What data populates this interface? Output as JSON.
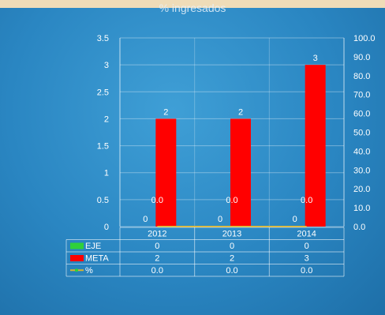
{
  "title": "% ingresados",
  "chart_data": {
    "type": "bar",
    "categories": [
      "2012",
      "2013",
      "2014"
    ],
    "series": [
      {
        "name": "EJE",
        "type": "bar",
        "color": "#2fd13a",
        "values": [
          0,
          0,
          0
        ]
      },
      {
        "name": "META",
        "type": "bar",
        "color": "#ff0000",
        "values": [
          2,
          2,
          3
        ]
      },
      {
        "name": "%",
        "type": "line",
        "axis": "right",
        "color": "#d7b42f",
        "values": [
          0.0,
          0.0,
          0.0
        ]
      }
    ],
    "ylim": [
      0,
      3.5
    ],
    "yticks": [
      "0",
      "0.5",
      "1",
      "1.5",
      "2",
      "2.5",
      "3",
      "3.5"
    ],
    "y2lim": [
      0,
      100
    ],
    "y2ticks": [
      "0.0",
      "10.0",
      "20.0",
      "30.0",
      "40.0",
      "50.0",
      "60.0",
      "70.0",
      "80.0",
      "90.0",
      "100.0"
    ],
    "data_labels": {
      "EJE": [
        "0",
        "0",
        "0"
      ],
      "META": [
        "2",
        "2",
        "3"
      ],
      "%": [
        "0.0",
        "0.0",
        "0.0"
      ]
    },
    "table": [
      {
        "series": "EJE",
        "values": [
          "0",
          "0",
          "0"
        ]
      },
      {
        "series": "META",
        "values": [
          "2",
          "2",
          "3"
        ]
      },
      {
        "series": "%",
        "values": [
          "0.0",
          "0.0",
          "0.0"
        ]
      }
    ],
    "grid": true,
    "legend": "data-table"
  }
}
